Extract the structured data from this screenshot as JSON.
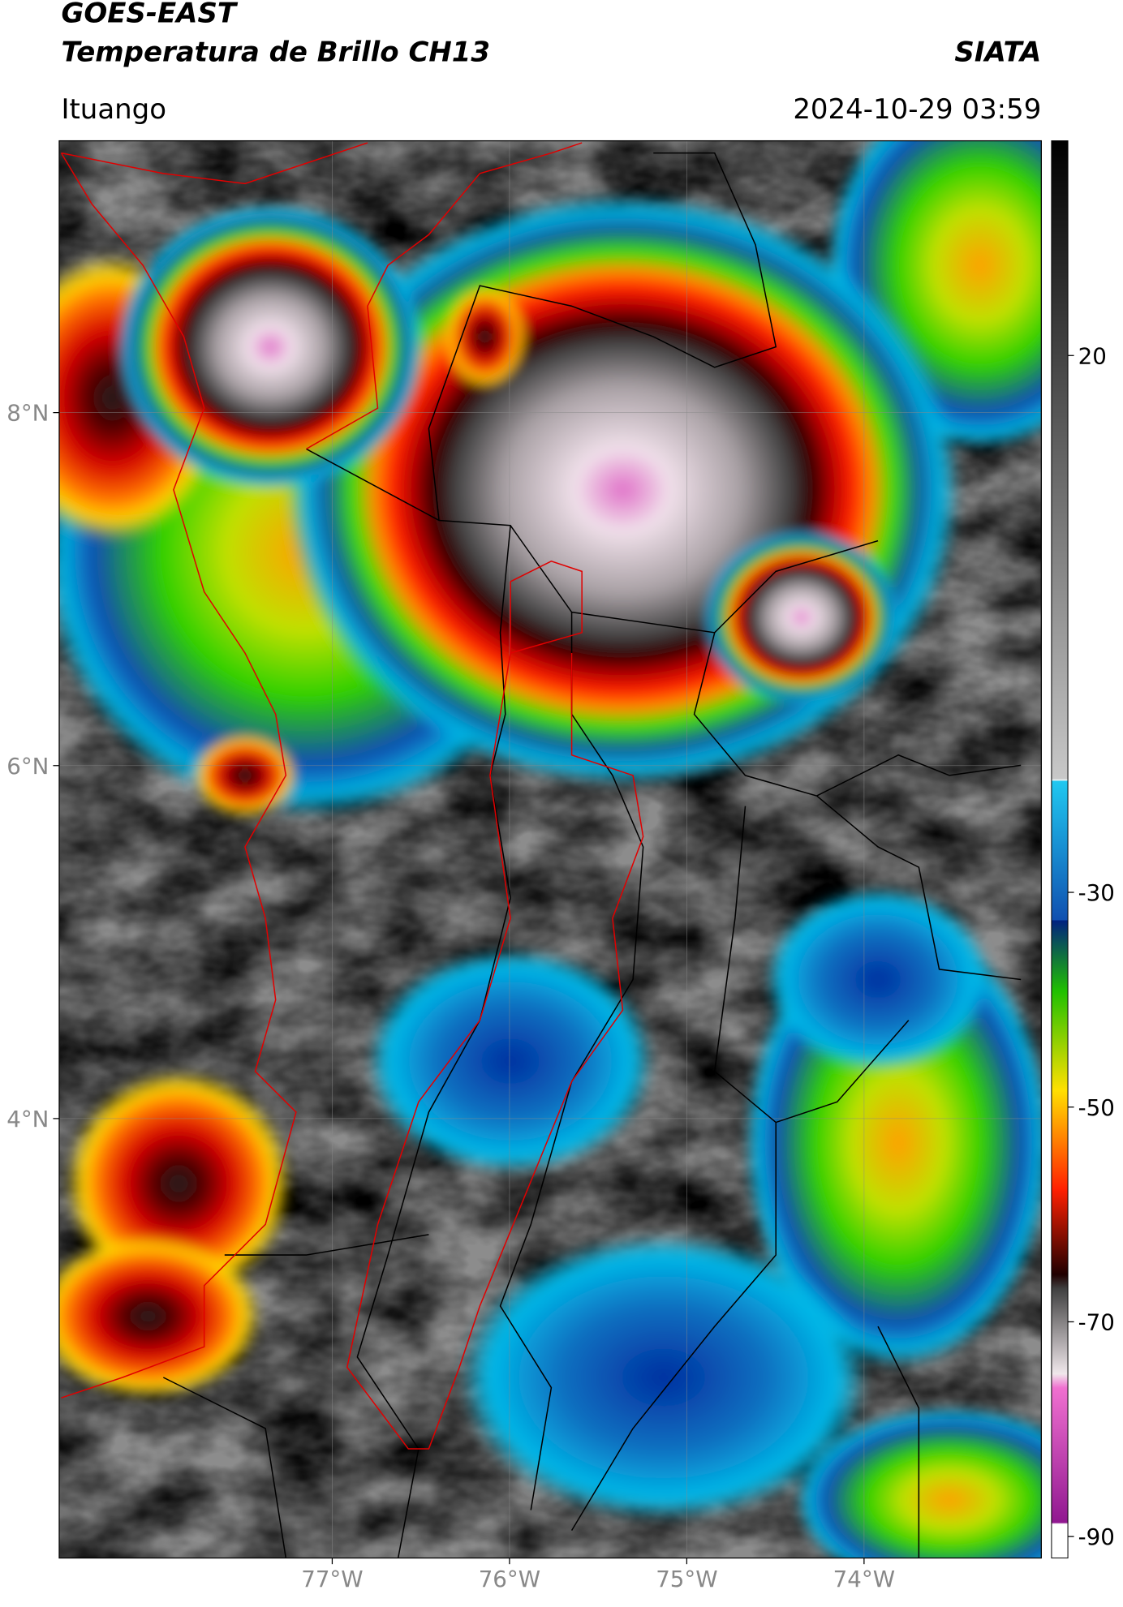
{
  "header": {
    "title": "GOES-EAST",
    "subtitle": "Temperatura de Brillo CH13",
    "source": "SIATA",
    "location": "Ituango",
    "datetime": "2024-10-29 03:59"
  },
  "map": {
    "xlim": [
      -78.54,
      -73.0
    ],
    "ylim": [
      1.51,
      9.54
    ],
    "xticks": [
      {
        "value": -77,
        "label": "77°W"
      },
      {
        "value": -76,
        "label": "76°W"
      },
      {
        "value": -75,
        "label": "75°W"
      },
      {
        "value": -74,
        "label": "74°W"
      }
    ],
    "yticks": [
      {
        "value": 8,
        "label": "8°N"
      },
      {
        "value": 6,
        "label": "6°N"
      },
      {
        "value": 4,
        "label": "4°N"
      }
    ],
    "grid": true
  },
  "colorbar": {
    "lim": [
      -92,
      40
    ],
    "ticks": [
      20,
      -30,
      -50,
      -70,
      -90
    ]
  }
}
